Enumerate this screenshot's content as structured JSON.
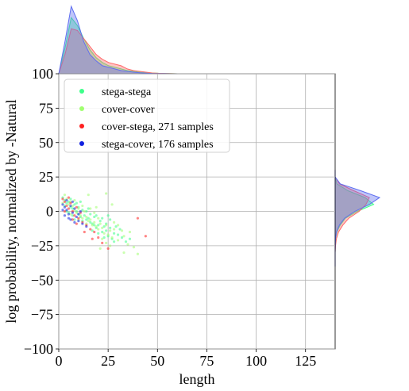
{
  "chart_data": {
    "type": "scatter",
    "xlabel": "length",
    "ylabel": "log probability, normalized by -Natural",
    "xlim": [
      0,
      140
    ],
    "ylim": [
      -100,
      100
    ],
    "xticks": [
      0,
      25,
      50,
      75,
      100,
      125
    ],
    "yticks": [
      -100,
      -75,
      -50,
      -25,
      0,
      25,
      50,
      75,
      100
    ],
    "grid": true,
    "legend_position": "top-left",
    "series": [
      {
        "name": "stega-stega",
        "color": "#3dff8a",
        "points": [
          [
            2,
            10
          ],
          [
            3,
            8
          ],
          [
            4,
            6
          ],
          [
            5,
            7
          ],
          [
            6,
            3
          ],
          [
            7,
            2
          ],
          [
            8,
            5
          ],
          [
            9,
            0
          ],
          [
            10,
            -2
          ],
          [
            11,
            -4
          ],
          [
            12,
            1
          ],
          [
            13,
            -3
          ],
          [
            14,
            -6
          ],
          [
            15,
            -5
          ],
          [
            16,
            -8
          ],
          [
            17,
            -9
          ],
          [
            18,
            -4
          ],
          [
            19,
            -12
          ],
          [
            20,
            -10
          ],
          [
            21,
            -7
          ],
          [
            22,
            -15
          ],
          [
            23,
            -11
          ],
          [
            24,
            -14
          ],
          [
            25,
            -18
          ],
          [
            26,
            -12
          ],
          [
            27,
            -20
          ],
          [
            28,
            -16
          ],
          [
            30,
            -17
          ],
          [
            32,
            -19
          ],
          [
            34,
            -22
          ],
          [
            3,
            4
          ],
          [
            5,
            -1
          ],
          [
            6,
            9
          ],
          [
            7,
            -3
          ],
          [
            9,
            6
          ],
          [
            10,
            3
          ],
          [
            12,
            -7
          ],
          [
            14,
            0
          ],
          [
            16,
            -2
          ],
          [
            18,
            -10
          ],
          [
            20,
            -16
          ],
          [
            22,
            -5
          ],
          [
            24,
            -9
          ],
          [
            26,
            -6
          ],
          [
            28,
            -22
          ],
          [
            31,
            -13
          ],
          [
            36,
            -20
          ],
          [
            4,
            0
          ],
          [
            8,
            -6
          ],
          [
            11,
            7
          ],
          [
            15,
            2
          ],
          [
            17,
            -14
          ],
          [
            19,
            -3
          ],
          [
            23,
            -19
          ],
          [
            25,
            -3
          ],
          [
            29,
            -11
          ]
        ]
      },
      {
        "name": "cover-cover",
        "color": "#a0ff70",
        "points": [
          [
            3,
            12
          ],
          [
            4,
            9
          ],
          [
            5,
            5
          ],
          [
            6,
            7
          ],
          [
            7,
            4
          ],
          [
            8,
            1
          ],
          [
            9,
            -1
          ],
          [
            10,
            2
          ],
          [
            11,
            -3
          ],
          [
            12,
            -5
          ],
          [
            13,
            0
          ],
          [
            14,
            -4
          ],
          [
            15,
            -7
          ],
          [
            16,
            -6
          ],
          [
            17,
            -10
          ],
          [
            18,
            -8
          ],
          [
            19,
            -11
          ],
          [
            20,
            -13
          ],
          [
            21,
            -9
          ],
          [
            22,
            -12
          ],
          [
            23,
            -16
          ],
          [
            24,
            -10
          ],
          [
            25,
            -17
          ],
          [
            26,
            -14
          ],
          [
            27,
            -19
          ],
          [
            28,
            -13
          ],
          [
            30,
            -21
          ],
          [
            33,
            -18
          ],
          [
            35,
            -24
          ],
          [
            38,
            -26
          ],
          [
            40,
            -31
          ],
          [
            2,
            6
          ],
          [
            6,
            -2
          ],
          [
            8,
            8
          ],
          [
            10,
            -6
          ],
          [
            12,
            4
          ],
          [
            14,
            -9
          ],
          [
            16,
            2
          ],
          [
            18,
            -1
          ],
          [
            20,
            -5
          ],
          [
            22,
            -20
          ],
          [
            24,
            -23
          ],
          [
            26,
            -25
          ],
          [
            28,
            -8
          ],
          [
            30,
            -10
          ],
          [
            32,
            -14
          ],
          [
            36,
            -15
          ],
          [
            19,
            3
          ],
          [
            27,
            5
          ],
          [
            21,
            -27
          ],
          [
            15,
            12
          ],
          [
            24,
            13
          ],
          [
            33,
            -30
          ]
        ]
      },
      {
        "name": "cover-stega, 271 samples",
        "color": "#ff2020",
        "points": [
          [
            2,
            9
          ],
          [
            3,
            7
          ],
          [
            4,
            4
          ],
          [
            5,
            2
          ],
          [
            6,
            6
          ],
          [
            7,
            0
          ],
          [
            8,
            -3
          ],
          [
            9,
            3
          ],
          [
            10,
            -5
          ],
          [
            11,
            -1
          ],
          [
            12,
            -8
          ],
          [
            14,
            -10
          ],
          [
            16,
            -13
          ],
          [
            18,
            -15
          ],
          [
            20,
            -19
          ],
          [
            22,
            -23
          ],
          [
            3,
            0
          ],
          [
            5,
            10
          ],
          [
            7,
            -6
          ],
          [
            9,
            -9
          ],
          [
            13,
            -15
          ],
          [
            17,
            -20
          ],
          [
            25,
            -27
          ],
          [
            40,
            -5
          ],
          [
            44,
            -18
          ]
        ]
      },
      {
        "name": "stega-cover, 176 samples",
        "color": "#1020e0",
        "points": [
          [
            2,
            5
          ],
          [
            3,
            3
          ],
          [
            4,
            1
          ],
          [
            5,
            -2
          ],
          [
            6,
            4
          ],
          [
            7,
            -1
          ],
          [
            8,
            2
          ],
          [
            9,
            -4
          ],
          [
            10,
            -7
          ],
          [
            11,
            0
          ],
          [
            12,
            -9
          ],
          [
            14,
            -11
          ],
          [
            2,
            1
          ],
          [
            3,
            -3
          ],
          [
            4,
            8
          ],
          [
            6,
            -6
          ],
          [
            8,
            -8
          ],
          [
            5,
            -5
          ],
          [
            7,
            7
          ],
          [
            10,
            -2
          ]
        ]
      }
    ],
    "marginal_x": {
      "series": [
        {
          "name": "stega-stega",
          "color": "#3dff8a",
          "values": [
            0,
            16,
            35,
            30,
            22,
            15,
            10,
            7,
            5,
            4,
            3,
            2,
            1.5,
            1,
            0.7,
            0.5,
            0.3,
            0.2,
            0.1,
            0
          ]
        },
        {
          "name": "cover-stega",
          "color": "#ff6a6a",
          "values": [
            0,
            12,
            28,
            27,
            22,
            17,
            12,
            9,
            7,
            6,
            5,
            3,
            2,
            1.5,
            1,
            0.5,
            0.3,
            0.2,
            0.1,
            0
          ]
        },
        {
          "name": "stega-cover",
          "color": "#5f6ff0",
          "values": [
            0,
            20,
            42,
            33,
            20,
            12,
            8,
            5,
            4,
            3,
            2,
            1.5,
            1,
            0.6,
            0.4,
            0.2,
            0.1,
            0.1,
            0,
            0
          ]
        }
      ]
    },
    "marginal_y": {
      "series": [
        {
          "name": "stega-stega",
          "color": "#3dff8a",
          "values": [
            0,
            0,
            0,
            0.02,
            0.05,
            0.2,
            0.6,
            1.2,
            2.6,
            4.5,
            3.5,
            1.5,
            0.2,
            0,
            0
          ]
        },
        {
          "name": "cover-stega",
          "color": "#ff6a6a",
          "values": [
            0,
            0,
            0,
            0.05,
            0.15,
            0.4,
            0.9,
            1.6,
            2.8,
            3.6,
            4.0,
            2.2,
            0.5,
            0,
            0
          ]
        },
        {
          "name": "stega-cover",
          "color": "#5f6ff0",
          "values": [
            0,
            0,
            0,
            0.02,
            0.05,
            0.15,
            0.5,
            1.1,
            2.3,
            4.0,
            5.2,
            3.0,
            0.6,
            0,
            0
          ]
        }
      ]
    }
  }
}
